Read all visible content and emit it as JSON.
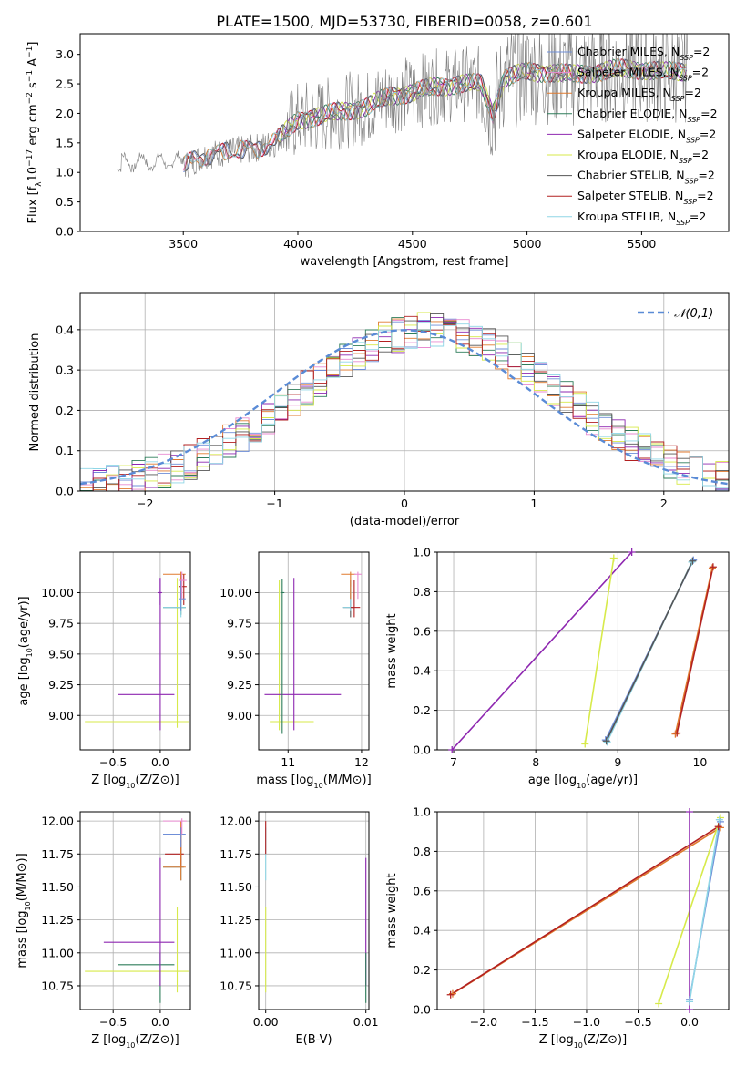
{
  "figure": {
    "title": "PLATE=1500, MJD=53730, FIBERID=0058, z=0.601"
  },
  "colors": {
    "Chabrier MILES": "#6f8fd8",
    "Salpeter MILES": "#e88ad0",
    "Kroupa MILES": "#e07a2e",
    "Chabrier ELODIE": "#2e7d5a",
    "Salpeter ELODIE": "#8e27b0",
    "Kroupa ELODIE": "#d7ea4a",
    "Chabrier STELIB": "#555555",
    "Salpeter STELIB": "#b22020",
    "Kroupa STELIB": "#8fd6e6",
    "data": "#7f7f7f",
    "normal": "#5a8bd6",
    "grid": "#b0b0b0"
  },
  "chart_data": [
    {
      "id": "spectrum",
      "type": "line",
      "xlabel": "wavelength [Angstrom, rest frame]",
      "ylabel": "Flux [f_λ10^-17 erg cm^-2 s^-1 A^-1]",
      "xlim": [
        3050,
        5880
      ],
      "ylim": [
        0,
        3.35
      ],
      "xticks": [
        3500,
        4000,
        4500,
        5000,
        5500
      ],
      "yticks": [
        0.0,
        0.5,
        1.0,
        1.5,
        2.0,
        2.5,
        3.0
      ],
      "grid": false,
      "legend_position": "upper-right",
      "legend": [
        "Chabrier MILES, N_SSP=2",
        "Salpeter MILES, N_SSP=2",
        "Kroupa MILES, N_SSP=2",
        "Chabrier ELODIE, N_SSP=2",
        "Salpeter ELODIE, N_SSP=2",
        "Kroupa ELODIE, N_SSP=2",
        "Chabrier STELIB, N_SSP=2",
        "Salpeter STELIB, N_SSP=2",
        "Kroupa STELIB, N_SSP=2"
      ],
      "model_continuum": {
        "x": [
          3200,
          3300,
          3400,
          3500,
          3520,
          3600,
          3700,
          3800,
          3900,
          3950,
          4000,
          4100,
          4200,
          4300,
          4400,
          4500,
          4600,
          4700,
          4800,
          4850,
          4900,
          5000,
          5100,
          5200,
          5300,
          5400,
          5500,
          5600,
          5700
        ],
        "y": [
          1.05,
          1.2,
          1.15,
          1.08,
          1.15,
          1.3,
          1.35,
          1.4,
          1.5,
          1.7,
          1.9,
          1.95,
          2.05,
          2.1,
          2.3,
          2.35,
          2.45,
          2.5,
          2.5,
          2.0,
          2.6,
          2.7,
          2.7,
          2.65,
          2.7,
          2.75,
          2.75,
          2.7,
          2.72
        ]
      },
      "data_range": [
        3210,
        5700
      ]
    },
    {
      "id": "residuals",
      "type": "step",
      "xlabel": "(data-model)/error",
      "ylabel": "Normed distribution",
      "xlim": [
        -2.5,
        2.5
      ],
      "ylim": [
        0,
        0.49
      ],
      "xticks": [
        -2,
        -1,
        0,
        1,
        2
      ],
      "yticks": [
        0.0,
        0.1,
        0.2,
        0.3,
        0.4
      ],
      "grid": true,
      "legend_position": "upper-right",
      "legend": [
        "𝒩(0,1)"
      ],
      "bin_width": 0.1,
      "hist_base": [
        0.03,
        0.03,
        0.04,
        0.05,
        0.05,
        0.06,
        0.07,
        0.08,
        0.09,
        0.1,
        0.1,
        0.12,
        0.12,
        0.14,
        0.15,
        0.17,
        0.19,
        0.21,
        0.22,
        0.25,
        0.25,
        0.27,
        0.3,
        0.32,
        0.33,
        0.35,
        0.36,
        0.36,
        0.37,
        0.38,
        0.38,
        0.39,
        0.4,
        0.39,
        0.38,
        0.38,
        0.37,
        0.36,
        0.35,
        0.33,
        0.32,
        0.3,
        0.29,
        0.27,
        0.26,
        0.24,
        0.22,
        0.21,
        0.19,
        0.17,
        0.16,
        0.14,
        0.12,
        0.11,
        0.1,
        0.08,
        0.07,
        0.06,
        0.06,
        0.05,
        0.04,
        0.04,
        0.03,
        0.03,
        0.03,
        0.03,
        0.02,
        0.02,
        0.02,
        0.02
      ]
    },
    {
      "id": "age-vs-Z",
      "type": "errorbar",
      "xlabel": "Z [log10(Z/Z⊙)]",
      "ylabel": "age  [log10(age/yr)]",
      "xlim": [
        -0.85,
        0.32
      ],
      "ylim": [
        8.72,
        10.33
      ],
      "xticks": [
        -0.5,
        0.0
      ],
      "yticks": [
        9.0,
        9.25,
        9.5,
        9.75,
        10.0
      ],
      "grid": true,
      "points": [
        {
          "m": "Kroupa ELODIE",
          "x": 0.18,
          "xlo": -0.8,
          "xhi": 0.3,
          "y": 8.95,
          "ylo": 8.9,
          "yhi": 10.12
        },
        {
          "m": "Salpeter ELODIE",
          "x": 0.0,
          "xlo": -0.45,
          "xhi": 0.15,
          "y": 9.17,
          "ylo": 8.88,
          "yhi": 10.12
        },
        {
          "m": "Salpeter ELODIE",
          "x": 0.0,
          "xlo": -0.02,
          "xhi": 0.02,
          "y": 10.0,
          "ylo": 9.9,
          "yhi": 10.12
        },
        {
          "m": "Chabrier ELODIE",
          "x": 0.22,
          "xlo": 0.03,
          "xhi": 0.27,
          "y": 9.88,
          "ylo": 9.82,
          "yhi": 10.0
        },
        {
          "m": "Kroupa STELIB",
          "x": 0.22,
          "xlo": 0.03,
          "xhi": 0.27,
          "y": 9.88,
          "ylo": 9.8,
          "yhi": 10.15
        },
        {
          "m": "Kroupa MILES",
          "x": 0.22,
          "xlo": 0.03,
          "xhi": 0.27,
          "y": 10.15,
          "ylo": 9.95,
          "yhi": 10.17
        },
        {
          "m": "Salpeter STELIB",
          "x": 0.25,
          "xlo": 0.2,
          "xhi": 0.28,
          "y": 10.05,
          "ylo": 9.9,
          "yhi": 10.15
        },
        {
          "m": "Chabrier MILES",
          "x": 0.22,
          "xlo": 0.2,
          "xhi": 0.27,
          "y": 9.95,
          "ylo": 9.85,
          "yhi": 10.1
        },
        {
          "m": "Salpeter MILES",
          "x": 0.23,
          "xlo": 0.2,
          "xhi": 0.28,
          "y": 10.1,
          "ylo": 9.95,
          "yhi": 10.17
        }
      ]
    },
    {
      "id": "age-vs-mass",
      "type": "errorbar",
      "xlabel": "mass [log10(M/M⊙)]",
      "ylabel": "",
      "xlim": [
        10.6,
        12.1
      ],
      "ylim": [
        8.72,
        10.33
      ],
      "xticks": [
        11,
        12
      ],
      "yticks": [
        9.0,
        9.25,
        9.5,
        9.75,
        10.0
      ],
      "grid": true,
      "points": [
        {
          "m": "Kroupa ELODIE",
          "x": 10.88,
          "xlo": 10.75,
          "xhi": 11.35,
          "y": 8.95,
          "ylo": 8.88,
          "yhi": 10.1
        },
        {
          "m": "Salpeter ELODIE",
          "x": 11.08,
          "xlo": 10.68,
          "xhi": 11.72,
          "y": 9.17,
          "ylo": 8.88,
          "yhi": 10.12
        },
        {
          "m": "Chabrier ELODIE",
          "x": 10.92,
          "xlo": 10.9,
          "xhi": 10.95,
          "y": 10.0,
          "ylo": 8.85,
          "yhi": 10.11
        },
        {
          "m": "Chabrier STELIB",
          "x": 11.85,
          "xlo": 11.75,
          "xhi": 11.9,
          "y": 9.88,
          "ylo": 9.8,
          "yhi": 10.1
        },
        {
          "m": "Kroupa STELIB",
          "x": 11.85,
          "xlo": 11.75,
          "xhi": 11.9,
          "y": 9.88,
          "ylo": 9.85,
          "yhi": 10.05
        },
        {
          "m": "Salpeter STELIB",
          "x": 11.9,
          "xlo": 11.85,
          "xhi": 11.98,
          "y": 9.88,
          "ylo": 9.8,
          "yhi": 10.1
        },
        {
          "m": "Kroupa MILES",
          "x": 11.85,
          "xlo": 11.72,
          "xhi": 11.92,
          "y": 10.15,
          "ylo": 9.95,
          "yhi": 10.17
        },
        {
          "m": "Salpeter MILES",
          "x": 11.95,
          "xlo": 11.9,
          "xhi": 12.0,
          "y": 10.15,
          "ylo": 9.95,
          "yhi": 10.17
        }
      ]
    },
    {
      "id": "weight-vs-age",
      "type": "line",
      "xlabel": "age  [log10(age/yr)]",
      "ylabel": "mass weight",
      "xlim": [
        6.8,
        10.35
      ],
      "ylim": [
        0,
        1.0
      ],
      "xticks": [
        7,
        8,
        9,
        10
      ],
      "yticks": [
        0.0,
        0.2,
        0.4,
        0.6,
        0.8,
        1.0
      ],
      "grid": true,
      "series": [
        {
          "m": "Salpeter ELODIE",
          "x": [
            6.98,
            9.17
          ],
          "y": [
            0.0,
            1.0
          ]
        },
        {
          "m": "Kroupa ELODIE",
          "x": [
            8.6,
            8.95
          ],
          "y": [
            0.03,
            0.97
          ]
        },
        {
          "m": "Chabrier MILES",
          "x": [
            8.85,
            9.92
          ],
          "y": [
            0.05,
            0.96
          ]
        },
        {
          "m": "Kroupa STELIB",
          "x": [
            8.87,
            9.9
          ],
          "y": [
            0.04,
            0.95
          ]
        },
        {
          "m": "Chabrier STELIB",
          "x": [
            8.86,
            9.91
          ],
          "y": [
            0.045,
            0.955
          ]
        },
        {
          "m": "Kroupa MILES",
          "x": [
            9.7,
            10.15
          ],
          "y": [
            0.08,
            0.92
          ]
        },
        {
          "m": "Salpeter STELIB",
          "x": [
            9.72,
            10.16
          ],
          "y": [
            0.085,
            0.925
          ]
        }
      ]
    },
    {
      "id": "mass-vs-Z",
      "type": "errorbar",
      "xlabel": "Z [log10(Z/Z⊙)]",
      "ylabel": "mass [log10(M/M⊙)]",
      "xlim": [
        -0.85,
        0.32
      ],
      "ylim": [
        10.57,
        12.07
      ],
      "xticks": [
        -0.5,
        0.0
      ],
      "yticks": [
        10.75,
        11.0,
        11.25,
        11.5,
        11.75,
        12.0
      ],
      "grid": true,
      "points": [
        {
          "m": "Kroupa ELODIE",
          "x": 0.18,
          "xlo": -0.8,
          "xhi": 0.3,
          "y": 10.86,
          "ylo": 10.7,
          "yhi": 11.35
        },
        {
          "m": "Chabrier ELODIE",
          "x": 0.0,
          "xlo": -0.45,
          "xhi": 0.15,
          "y": 10.91,
          "ylo": 10.62,
          "yhi": 11.0
        },
        {
          "m": "Salpeter ELODIE",
          "x": 0.0,
          "xlo": -0.6,
          "xhi": 0.15,
          "y": 11.08,
          "ylo": 10.75,
          "yhi": 11.72
        },
        {
          "m": "Chabrier STELIB",
          "x": 0.22,
          "xlo": 0.03,
          "xhi": 0.25,
          "y": 11.65,
          "ylo": 11.55,
          "yhi": 11.95
        },
        {
          "m": "Kroupa STELIB",
          "x": 0.22,
          "xlo": 0.03,
          "xhi": 0.25,
          "y": 11.65,
          "ylo": 11.55,
          "yhi": 11.9
        },
        {
          "m": "Salpeter STELIB",
          "x": 0.22,
          "xlo": 0.05,
          "xhi": 0.25,
          "y": 11.75,
          "ylo": 11.65,
          "yhi": 11.95
        },
        {
          "m": "Kroupa MILES",
          "x": 0.22,
          "xlo": 0.03,
          "xhi": 0.27,
          "y": 11.65,
          "ylo": 11.55,
          "yhi": 12.0
        },
        {
          "m": "Chabrier MILES",
          "x": 0.22,
          "xlo": 0.03,
          "xhi": 0.27,
          "y": 11.9,
          "ylo": 11.8,
          "yhi": 11.95
        },
        {
          "m": "Salpeter MILES",
          "x": 0.23,
          "xlo": 0.03,
          "xhi": 0.28,
          "y": 12.0,
          "ylo": 11.9,
          "yhi": 12.02
        }
      ]
    },
    {
      "id": "mass-vs-ebv",
      "type": "errorbar",
      "xlabel": "E(B-V)",
      "ylabel": "",
      "xlim": [
        -0.0007,
        0.0103
      ],
      "ylim": [
        10.57,
        12.07
      ],
      "xticks": [
        0.0,
        0.01
      ],
      "yticks": [
        10.75,
        11.0,
        11.25,
        11.5,
        11.75,
        12.0
      ],
      "grid": true,
      "points": [
        {
          "m": "Kroupa ELODIE",
          "x": 0.0,
          "y": 10.86,
          "ylo": 10.7,
          "yhi": 11.35
        },
        {
          "m": "Kroupa STELIB",
          "x": 0.0,
          "y": 11.7,
          "ylo": 11.55,
          "yhi": 11.95
        },
        {
          "m": "Salpeter STELIB",
          "x": 0.0,
          "y": 11.85,
          "ylo": 11.75,
          "yhi": 12.0
        },
        {
          "m": "Salpeter ELODIE",
          "x": 0.01,
          "y": 11.08,
          "ylo": 10.75,
          "yhi": 11.72
        },
        {
          "m": "Chabrier ELODIE",
          "x": 0.01,
          "y": 10.91,
          "ylo": 10.62,
          "yhi": 11.0
        }
      ]
    },
    {
      "id": "weight-vs-Z",
      "type": "line",
      "xlabel": "Z [log10(Z/Z⊙)]",
      "ylabel": "mass weight",
      "xlim": [
        -2.45,
        0.38
      ],
      "ylim": [
        0,
        1.0
      ],
      "xticks": [
        -2.0,
        -1.5,
        -1.0,
        -0.5,
        0.0
      ],
      "yticks": [
        0.0,
        0.2,
        0.4,
        0.6,
        0.8,
        1.0
      ],
      "grid": true,
      "series": [
        {
          "m": "Kroupa MILES",
          "x": [
            -2.3,
            0.3
          ],
          "y": [
            0.08,
            0.92
          ]
        },
        {
          "m": "Salpeter STELIB",
          "x": [
            -2.32,
            0.28
          ],
          "y": [
            0.075,
            0.925
          ]
        },
        {
          "m": "Kroupa ELODIE",
          "x": [
            -0.3,
            0.3
          ],
          "y": [
            0.03,
            0.97
          ]
        },
        {
          "m": "Chabrier MILES",
          "x": [
            0.0,
            0.3
          ],
          "y": [
            0.05,
            0.95
          ]
        },
        {
          "m": "Kroupa STELIB",
          "x": [
            0.0,
            0.29
          ],
          "y": [
            0.04,
            0.96
          ]
        },
        {
          "m": "Salpeter ELODIE",
          "x": [
            0.0,
            0.0
          ],
          "y": [
            0.0,
            1.0
          ]
        }
      ]
    }
  ]
}
